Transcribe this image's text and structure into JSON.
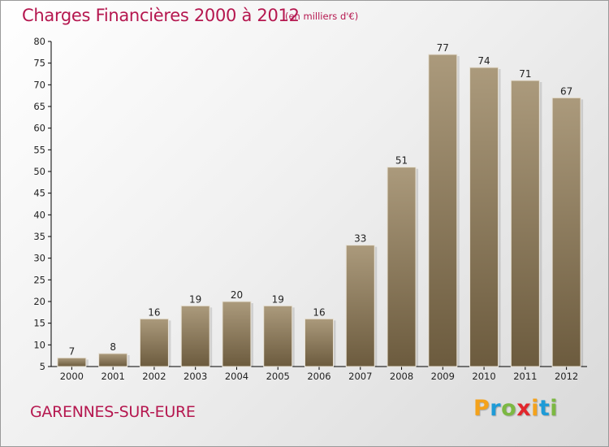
{
  "title": "Charges Financières 2000 à 2012",
  "subtitle": "(en milliers d'€)",
  "commune": "GARENNES-SUR-EURE",
  "logo": {
    "letters": [
      "P",
      "r",
      "o",
      "x",
      "i",
      "t",
      "i"
    ],
    "colors": [
      "#f4a21b",
      "#1e9bd7",
      "#7cb842",
      "#e2262c",
      "#f4a21b",
      "#1e9bd7",
      "#7cb842"
    ]
  },
  "colors": {
    "title": "#b5174f",
    "bar_top": "#ab9a7c",
    "bar_bottom": "#6c5b3e",
    "axis": "#000000",
    "grid": "#cccccc"
  },
  "chart_data": {
    "type": "bar",
    "title": "Charges Financières 2000 à 2012",
    "subtitle": "(en milliers d'€)",
    "categories": [
      "2000",
      "2001",
      "2002",
      "2003",
      "2004",
      "2005",
      "2006",
      "2007",
      "2008",
      "2009",
      "2010",
      "2011",
      "2012"
    ],
    "values": [
      7,
      8,
      16,
      19,
      20,
      19,
      16,
      33,
      51,
      77,
      74,
      71,
      67
    ],
    "ylim": [
      5,
      80
    ],
    "yticks": [
      5,
      10,
      15,
      20,
      25,
      30,
      35,
      40,
      45,
      50,
      55,
      60,
      65,
      70,
      75,
      80
    ],
    "xlabel": "",
    "ylabel": "",
    "data_labels": true,
    "grid": false
  }
}
